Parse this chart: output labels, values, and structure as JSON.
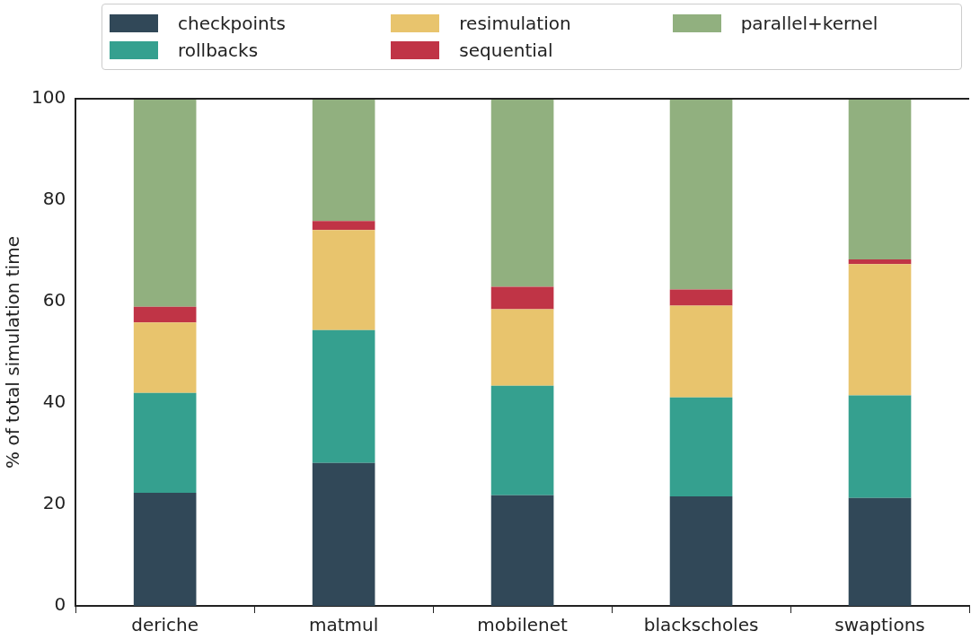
{
  "chart_data": {
    "type": "bar",
    "stacked": true,
    "ylabel": "% of total simulation time",
    "categories": [
      "deriche",
      "matmul",
      "mobilenet",
      "blackscholes",
      "swaptions"
    ],
    "series": [
      {
        "name": "checkpoints",
        "color": "#314858",
        "values": [
          22.3,
          28.2,
          21.8,
          21.6,
          21.3
        ]
      },
      {
        "name": "rollbacks",
        "color": "#35a08f",
        "values": [
          19.7,
          26.2,
          21.6,
          19.5,
          20.2
        ]
      },
      {
        "name": "resimulation",
        "color": "#e8c46d",
        "values": [
          13.9,
          19.7,
          15.1,
          18.1,
          25.9
        ]
      },
      {
        "name": "sequential",
        "color": "#c03446",
        "values": [
          3.1,
          1.8,
          4.4,
          3.2,
          0.9
        ]
      },
      {
        "name": "parallel+kernel",
        "color": "#91b07f",
        "values": [
          41.0,
          24.1,
          37.1,
          37.6,
          31.7
        ]
      }
    ],
    "ylim": [
      0,
      100
    ],
    "yticks": [
      0,
      20,
      40,
      60,
      80,
      100
    ],
    "legend": "top"
  }
}
